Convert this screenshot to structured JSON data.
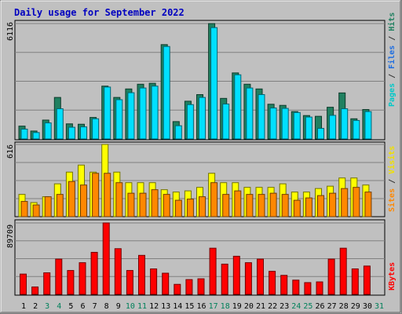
{
  "chart_data": [
    {
      "type": "bar",
      "title": "Daily usage for September 2022",
      "max_label": "6116",
      "ylim": [
        0,
        6116
      ],
      "grid": true,
      "categories": [
        "1",
        "2",
        "3",
        "4",
        "5",
        "6",
        "7",
        "8",
        "9",
        "10",
        "11",
        "12",
        "13",
        "14",
        "15",
        "16",
        "17",
        "18",
        "19",
        "20",
        "21",
        "22",
        "23",
        "24",
        "25",
        "26",
        "27",
        "28",
        "29",
        "30",
        "31"
      ],
      "weekend_days": [
        "3",
        "4",
        "10",
        "11",
        "17",
        "18",
        "24",
        "25",
        "31"
      ],
      "ylabel_parts": [
        {
          "text": "Pages",
          "color": "#00c8c8"
        },
        {
          "text": " / ",
          "color": "#333333"
        },
        {
          "text": "Files",
          "color": "#1e6ee0"
        },
        {
          "text": " / ",
          "color": "#333333"
        },
        {
          "text": "Hits",
          "color": "#208060"
        }
      ],
      "series": [
        {
          "name": "Hits",
          "color": "#208060",
          "values": [
            680,
            420,
            1000,
            2200,
            800,
            780,
            1140,
            2800,
            2200,
            2650,
            2900,
            2950,
            5000,
            920,
            2000,
            2350,
            6116,
            2150,
            3500,
            2900,
            2650,
            1840,
            1780,
            1450,
            1240,
            1200,
            1680,
            2440,
            1070,
            1560,
            0
          ]
        },
        {
          "name": "Files",
          "color": "#00e0ff",
          "values": [
            520,
            340,
            850,
            1600,
            620,
            640,
            1070,
            2750,
            2080,
            2450,
            2700,
            2800,
            4900,
            700,
            1820,
            2200,
            5900,
            1850,
            3400,
            2700,
            2350,
            1640,
            1620,
            1400,
            1160,
            560,
            1250,
            1600,
            980,
            1450,
            0
          ]
        }
      ]
    },
    {
      "type": "bar",
      "max_label": "616",
      "ylim": [
        0,
        616
      ],
      "grid": true,
      "ylabel_parts": [
        {
          "text": "Sites",
          "color": "#ff8800"
        },
        {
          "text": " / ",
          "color": "#333333"
        },
        {
          "text": "Visits",
          "color": "#f0e000"
        }
      ],
      "series": [
        {
          "name": "Visits",
          "color": "#ffff00",
          "values": [
            190,
            120,
            170,
            280,
            380,
            440,
            380,
            616,
            380,
            290,
            290,
            290,
            230,
            210,
            220,
            250,
            370,
            290,
            290,
            250,
            250,
            250,
            280,
            210,
            210,
            240,
            260,
            330,
            330,
            270,
            0
          ]
        },
        {
          "name": "Sites",
          "color": "#ff8800",
          "values": [
            130,
            100,
            170,
            190,
            300,
            270,
            370,
            370,
            290,
            200,
            200,
            230,
            190,
            140,
            150,
            170,
            290,
            190,
            220,
            190,
            190,
            200,
            190,
            140,
            160,
            180,
            200,
            240,
            250,
            210,
            0
          ]
        }
      ]
    },
    {
      "type": "bar",
      "max_label": "89709",
      "ylim": [
        0,
        89709
      ],
      "grid": true,
      "ylabel_parts": [
        {
          "text": "KBytes",
          "color": "#ff0000"
        }
      ],
      "series": [
        {
          "name": "KBytes",
          "color": "#ff0000",
          "values": [
            25500,
            9300,
            27100,
            44300,
            30000,
            39800,
            52800,
            89709,
            57400,
            30000,
            49000,
            32000,
            26600,
            12600,
            18600,
            19600,
            58000,
            38000,
            47900,
            39800,
            44300,
            29000,
            23900,
            17900,
            14800,
            15700,
            44300,
            58000,
            32000,
            35600,
            0
          ]
        }
      ]
    }
  ]
}
